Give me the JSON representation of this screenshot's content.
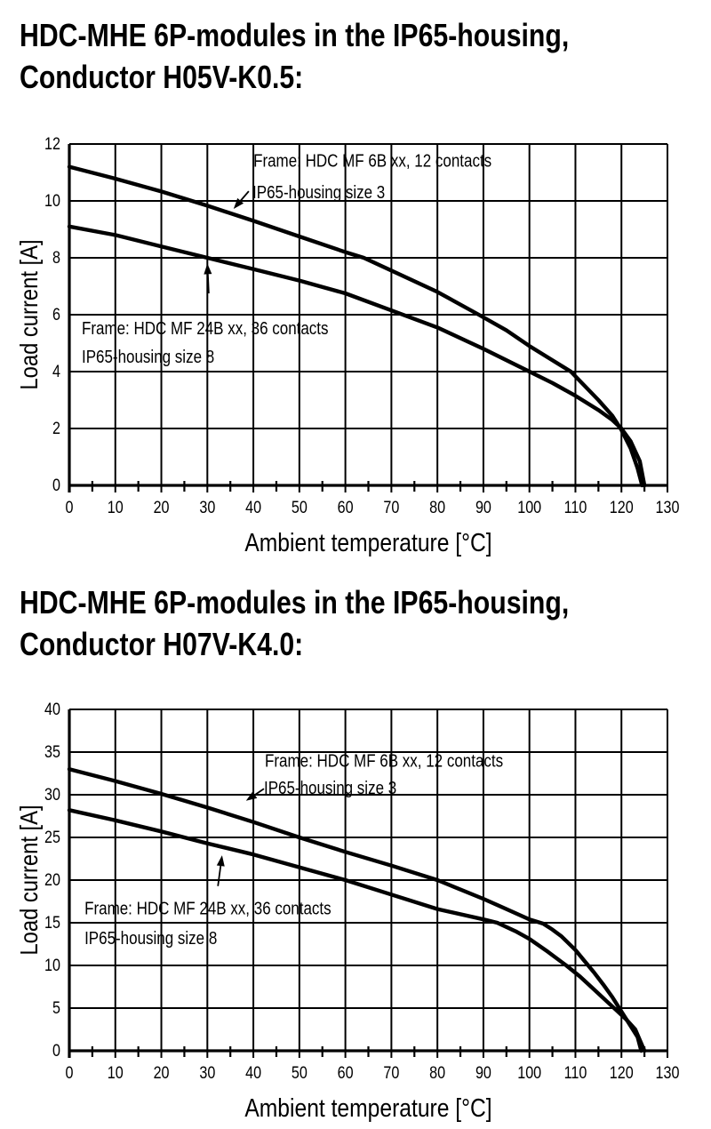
{
  "page": {
    "background": "#ffffff",
    "ink": "#000000"
  },
  "sections": [
    {
      "title_lines": [
        "HDC-MHE 6P-modules in the IP65-housing,",
        "Conductor H05V-K0.5:"
      ]
    },
    {
      "title_lines": [
        "HDC-MHE 6P-modules in the IP65-housing,",
        "Conductor H07V-K4.0:"
      ]
    }
  ],
  "chart_data": [
    {
      "type": "line",
      "title": "HDC-MHE 6P-modules in the IP65-housing, Conductor H05V-K0.5",
      "xlabel": "Ambient temperature [°C]",
      "ylabel": "Load current [A]",
      "xlim": [
        0,
        130
      ],
      "ylim": [
        0,
        12
      ],
      "x_ticks": [
        0,
        10,
        20,
        30,
        40,
        50,
        60,
        70,
        80,
        90,
        100,
        110,
        120,
        130
      ],
      "x_minor_step": 5,
      "y_ticks": [
        0,
        2,
        4,
        6,
        8,
        10,
        12
      ],
      "grid": true,
      "legend_position": "annotations-on-plot",
      "series": [
        {
          "name": "Frame: HDC MF 6B xx, 12 contacts, IP65-housing size 3",
          "points": [
            [
              0,
              11.2
            ],
            [
              10,
              10.78
            ],
            [
              20,
              10.33
            ],
            [
              30,
              9.83
            ],
            [
              40,
              9.3
            ],
            [
              50,
              8.75
            ],
            [
              60,
              8.2
            ],
            [
              64,
              8.0
            ],
            [
              70,
              7.55
            ],
            [
              80,
              6.8
            ],
            [
              89,
              6.0
            ],
            [
              95,
              5.45
            ],
            [
              100,
              4.9
            ],
            [
              105,
              4.4
            ],
            [
              109,
              4.0
            ],
            [
              112,
              3.5
            ],
            [
              115,
              3.0
            ],
            [
              118,
              2.45
            ],
            [
              120,
              1.95
            ],
            [
              122,
              1.3
            ],
            [
              123.5,
              0.6
            ],
            [
              124.5,
              0
            ]
          ]
        },
        {
          "name": "Frame: HDC MF 24B xx, 36 contacts, IP65-housing size 8",
          "points": [
            [
              0,
              9.1
            ],
            [
              10,
              8.8
            ],
            [
              20,
              8.4
            ],
            [
              30,
              8.0
            ],
            [
              40,
              7.6
            ],
            [
              50,
              7.2
            ],
            [
              60,
              6.75
            ],
            [
              70,
              6.15
            ],
            [
              80,
              5.55
            ],
            [
              90,
              4.8
            ],
            [
              100,
              4.0
            ],
            [
              105,
              3.6
            ],
            [
              110,
              3.15
            ],
            [
              115,
              2.65
            ],
            [
              118,
              2.3
            ],
            [
              120,
              2.0
            ],
            [
              122,
              1.55
            ],
            [
              124,
              0.85
            ],
            [
              125,
              0
            ]
          ]
        }
      ],
      "annotations": [
        {
          "lines": [
            {
              "text": "Frame: HDC MF 6B xx, 12 contacts",
              "pos": [
                40,
                11.2
              ]
            },
            {
              "text": "IP65-housing size 3",
              "pos": [
                39.8,
                10.1
              ]
            }
          ],
          "arrow": {
            "from": [
              39.0,
              10.34
            ],
            "to": [
              35.7,
              9.72
            ]
          }
        },
        {
          "lines": [
            {
              "text": "Frame: HDC MF 24B xx, 36 contacts",
              "pos": [
                2.7,
                5.31
              ]
            },
            {
              "text": "IP65-housing size 8",
              "pos": [
                2.7,
                4.31
              ]
            }
          ],
          "arrow": {
            "from": [
              30.3,
              6.75
            ],
            "to": [
              30.0,
              7.8
            ]
          }
        }
      ]
    },
    {
      "type": "line",
      "title": "HDC-MHE 6P-modules in the IP65-housing, Conductor H07V-K4.0",
      "xlabel": "Ambient temperature [°C]",
      "ylabel": "Load current [A]",
      "xlim": [
        0,
        130
      ],
      "ylim": [
        0,
        40
      ],
      "x_ticks": [
        0,
        10,
        20,
        30,
        40,
        50,
        60,
        70,
        80,
        90,
        100,
        110,
        120,
        130
      ],
      "x_minor_step": 5,
      "y_ticks": [
        0,
        5,
        10,
        15,
        20,
        25,
        30,
        35,
        40
      ],
      "grid": true,
      "legend_position": "annotations-on-plot",
      "series": [
        {
          "name": "Frame: HDC MF 6B xx, 12 contacts, IP65-housing size 3",
          "points": [
            [
              0,
              33
            ],
            [
              10,
              31.6
            ],
            [
              20,
              30.1
            ],
            [
              30,
              28.5
            ],
            [
              40,
              26.8
            ],
            [
              50,
              25
            ],
            [
              60,
              23.3
            ],
            [
              70,
              21.7
            ],
            [
              80,
              20
            ],
            [
              90,
              17.8
            ],
            [
              95,
              16.6
            ],
            [
              100,
              15.4
            ],
            [
              103,
              14.9
            ],
            [
              105,
              14.2
            ],
            [
              107,
              13.4
            ],
            [
              110,
              11.8
            ],
            [
              112,
              10.5
            ],
            [
              114,
              9.2
            ],
            [
              116,
              7.8
            ],
            [
              118,
              6.3
            ],
            [
              120,
              4.6
            ],
            [
              122,
              2.9
            ],
            [
              123.5,
              1.6
            ],
            [
              124.3,
              0
            ]
          ]
        },
        {
          "name": "Frame: HDC MF 24B xx, 36 contacts, IP65-housing size 8",
          "points": [
            [
              0,
              28.2
            ],
            [
              10,
              27
            ],
            [
              20,
              25.7
            ],
            [
              30,
              24.3
            ],
            [
              40,
              23
            ],
            [
              50,
              21.5
            ],
            [
              60,
              20
            ],
            [
              70,
              18.3
            ],
            [
              80,
              16.6
            ],
            [
              90,
              15.4
            ],
            [
              93,
              15.0
            ],
            [
              97,
              14.0
            ],
            [
              100,
              13.1
            ],
            [
              104,
              11.6
            ],
            [
              108,
              10.0
            ],
            [
              111,
              8.7
            ],
            [
              114,
              7.2
            ],
            [
              117,
              5.7
            ],
            [
              119,
              4.7
            ],
            [
              121,
              3.7
            ],
            [
              123,
              2.5
            ],
            [
              125,
              0
            ]
          ]
        }
      ],
      "annotations": [
        {
          "lines": [
            {
              "text": "Frame: HDC MF 6B xx, 12 contacts",
              "pos": [
                42.5,
                33.3
              ]
            },
            {
              "text": "IP65-housing size 3",
              "pos": [
                42.3,
                30.1
              ]
            }
          ],
          "arrow": {
            "from": [
              42.3,
              30.7
            ],
            "to": [
              38.4,
              29.3
            ]
          }
        },
        {
          "lines": [
            {
              "text": "Frame: HDC MF 24B xx, 36 contacts",
              "pos": [
                3.3,
                16.0
              ]
            },
            {
              "text": "IP65-housing size 8",
              "pos": [
                3.3,
                12.5
              ]
            }
          ],
          "arrow": {
            "from": [
              32.3,
              19.3
            ],
            "to": [
              33.2,
              22.9
            ]
          }
        }
      ]
    }
  ]
}
